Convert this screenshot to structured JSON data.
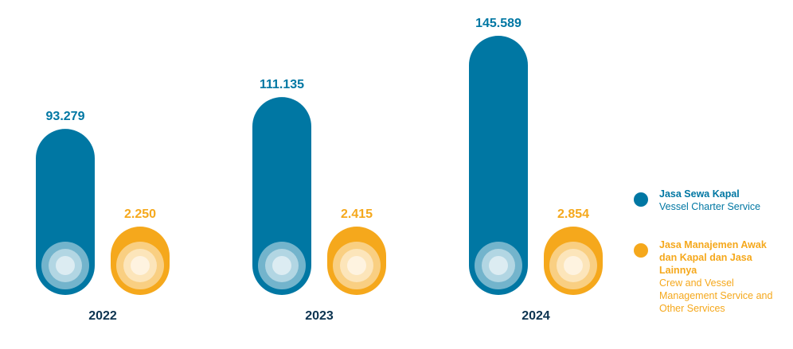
{
  "colors": {
    "series1": "#0077A3",
    "series2": "#F5A81C",
    "year_label": "#0B3350"
  },
  "chart_data": {
    "type": "bar",
    "title": "",
    "xlabel": "",
    "ylabel": "",
    "categories": [
      "2022",
      "2023",
      "2024"
    ],
    "series": [
      {
        "name": "Jasa Sewa Kapal / Vessel Charter Service",
        "values": [
          93279,
          111135,
          145589
        ],
        "labels": [
          "93.279",
          "111.135",
          "145.589"
        ]
      },
      {
        "name": "Jasa Manajemen Awak dan Kapal dan Jasa Lainnya / Crew and Vessel Management Service and Other Services",
        "values": [
          2250,
          2415,
          2854
        ],
        "labels": [
          "2.250",
          "2.415",
          "2.854"
        ]
      }
    ],
    "legend_position": "right",
    "grid": false
  },
  "legend": [
    {
      "id_lines": [
        "Jasa Sewa Kapal"
      ],
      "en_lines": [
        "Vessel Charter Service"
      ]
    },
    {
      "id_lines": [
        "Jasa Manajemen Awak",
        "dan Kapal dan Jasa",
        "Lainnya"
      ],
      "en_lines": [
        "Crew and Vessel",
        "Management Service and",
        "Other Services"
      ]
    }
  ]
}
